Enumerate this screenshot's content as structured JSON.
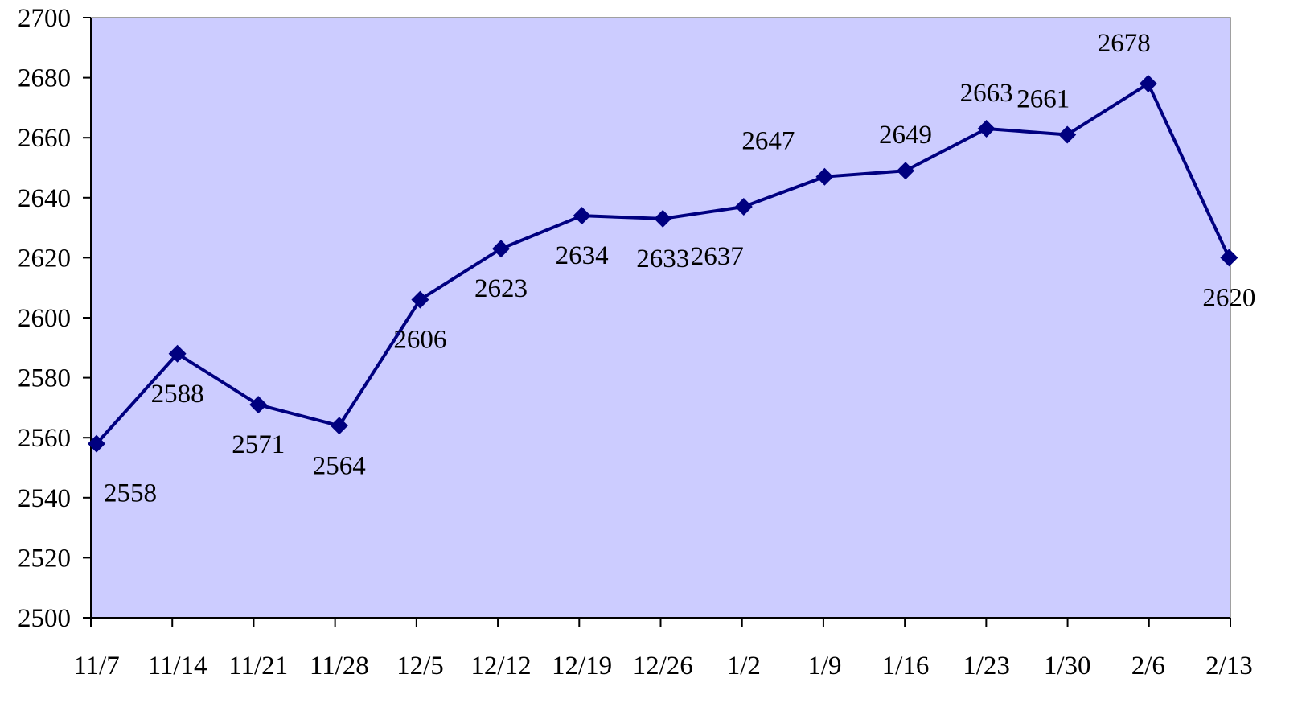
{
  "chart_data": {
    "type": "line",
    "title": "",
    "xlabel": "",
    "ylabel": "",
    "categories": [
      "11/7",
      "11/14",
      "11/21",
      "11/28",
      "12/5",
      "12/12",
      "12/19",
      "12/26",
      "1/2",
      "1/9",
      "1/16",
      "1/23",
      "1/30",
      "2/6",
      "2/13"
    ],
    "series": [
      {
        "values": [
          2558,
          2588,
          2571,
          2564,
          2606,
          2623,
          2634,
          2633,
          2637,
          2647,
          2649,
          2663,
          2661,
          2678,
          2620
        ]
      }
    ],
    "data_labels": [
      "2558",
      "2588",
      "2571",
      "2564",
      "2606",
      "2623",
      "2634",
      "2633",
      "2637",
      "2647",
      "2649",
      "2663",
      "2661",
      "2678",
      "2620"
    ],
    "label_position": [
      "below",
      "below",
      "below",
      "below",
      "below",
      "below",
      "below",
      "below",
      "below",
      "above",
      "above",
      "above",
      "above",
      "above",
      "below"
    ],
    "ylim": [
      2500,
      2700
    ],
    "yticks": [
      2500,
      2520,
      2540,
      2560,
      2580,
      2600,
      2620,
      2640,
      2660,
      2680,
      2700
    ],
    "ytick_labels": [
      "2500",
      "2520",
      "2540",
      "2560",
      "2580",
      "2600",
      "2620",
      "2640",
      "2660",
      "2680",
      "2700"
    ],
    "grid": false,
    "legend": "none",
    "marker": "diamond",
    "colors": {
      "plot_background": "#ccccff",
      "line": "#000080",
      "marker": "#000080",
      "axis": "#000000"
    }
  }
}
